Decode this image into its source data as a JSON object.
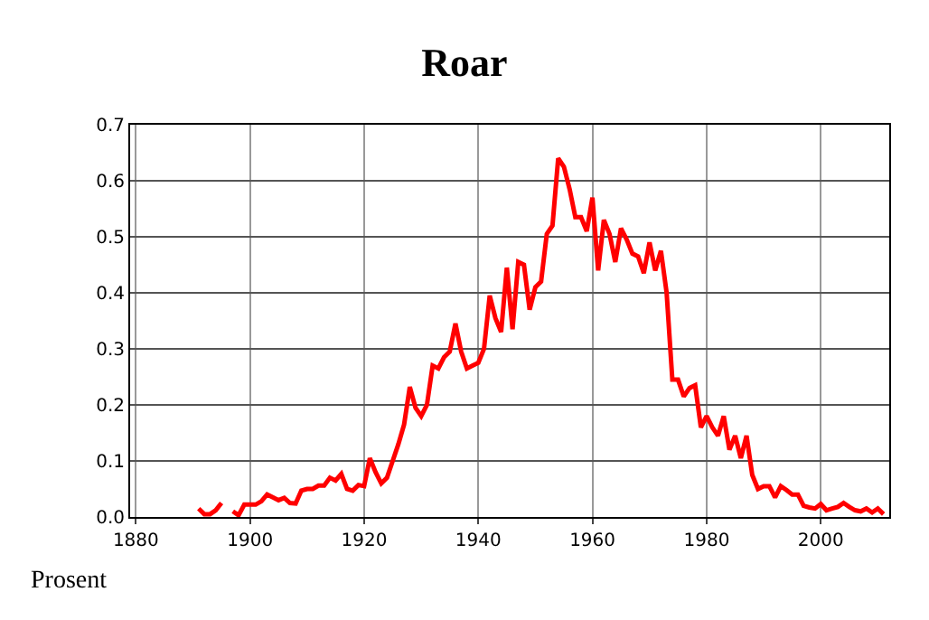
{
  "chart_data": {
    "type": "line",
    "title": "Roar",
    "ylabel": "Prosent",
    "x": [
      1891,
      1892,
      1893,
      1894,
      1895,
      1896,
      1897,
      1898,
      1899,
      1900,
      1901,
      1902,
      1903,
      1904,
      1905,
      1906,
      1907,
      1908,
      1909,
      1910,
      1911,
      1912,
      1913,
      1914,
      1915,
      1916,
      1917,
      1918,
      1919,
      1920,
      1921,
      1922,
      1923,
      1924,
      1925,
      1926,
      1927,
      1928,
      1929,
      1930,
      1931,
      1932,
      1933,
      1934,
      1935,
      1936,
      1937,
      1938,
      1939,
      1940,
      1941,
      1942,
      1943,
      1944,
      1945,
      1946,
      1947,
      1948,
      1949,
      1950,
      1951,
      1952,
      1953,
      1954,
      1955,
      1956,
      1957,
      1958,
      1959,
      1960,
      1961,
      1962,
      1963,
      1964,
      1965,
      1966,
      1967,
      1968,
      1969,
      1970,
      1971,
      1972,
      1973,
      1974,
      1975,
      1976,
      1977,
      1978,
      1979,
      1980,
      1981,
      1982,
      1983,
      1984,
      1985,
      1986,
      1987,
      1988,
      1989,
      1990,
      1991,
      1992,
      1993,
      1994,
      1995,
      1996,
      1997,
      1998,
      1999,
      2000,
      2001,
      2002,
      2003,
      2004,
      2005,
      2006,
      2007,
      2008,
      2009,
      2010,
      2011
    ],
    "series": [
      {
        "color": "#ff0000",
        "values": [
          0.015,
          0.005,
          0.005,
          0.012,
          0.025,
          null,
          0.01,
          0.003,
          0.022,
          0.022,
          0.022,
          0.028,
          0.04,
          0.035,
          0.03,
          0.034,
          0.025,
          0.024,
          0.047,
          0.05,
          0.05,
          0.056,
          0.056,
          0.07,
          0.065,
          0.077,
          0.05,
          0.047,
          0.057,
          0.055,
          0.105,
          0.08,
          0.06,
          0.07,
          0.1,
          0.13,
          0.165,
          0.232,
          0.195,
          0.18,
          0.2,
          0.27,
          0.265,
          0.285,
          0.295,
          0.345,
          0.295,
          0.265,
          0.27,
          0.275,
          0.3,
          0.395,
          0.355,
          0.33,
          0.445,
          0.335,
          0.455,
          0.45,
          0.37,
          0.41,
          0.42,
          0.505,
          0.52,
          0.64,
          0.625,
          0.585,
          0.535,
          0.535,
          0.51,
          0.57,
          0.44,
          0.53,
          0.505,
          0.455,
          0.515,
          0.495,
          0.47,
          0.465,
          0.435,
          0.49,
          0.44,
          0.475,
          0.4,
          0.245,
          0.245,
          0.215,
          0.23,
          0.235,
          0.16,
          0.18,
          0.16,
          0.145,
          0.18,
          0.12,
          0.145,
          0.105,
          0.145,
          0.075,
          0.05,
          0.055,
          0.055,
          0.035,
          0.055,
          0.048,
          0.04,
          0.04,
          0.02,
          0.017,
          0.015,
          0.023,
          0.012,
          0.015,
          0.018,
          0.025,
          0.018,
          0.012,
          0.01,
          0.015,
          0.008,
          0.015,
          0.005
        ]
      }
    ],
    "xlim": [
      1879,
      2012
    ],
    "xticks": [
      1880,
      1900,
      1920,
      1940,
      1960,
      1980,
      2000
    ],
    "ylim": [
      0,
      0.7
    ],
    "yticks": [
      {
        "value": 0,
        "label": "0.0"
      },
      {
        "value": 0.1,
        "label": "0.1"
      },
      {
        "value": 0.2,
        "label": "0.2"
      },
      {
        "value": 0.3,
        "label": "0.3"
      },
      {
        "value": 0.4,
        "label": "0.4"
      },
      {
        "value": 0.5,
        "label": "0.5"
      },
      {
        "value": 0.6,
        "label": "0.6"
      },
      {
        "value": 0.7,
        "label": "0.7"
      }
    ],
    "grid": true,
    "legend": false,
    "marker": "none",
    "line_style": "solid"
  }
}
